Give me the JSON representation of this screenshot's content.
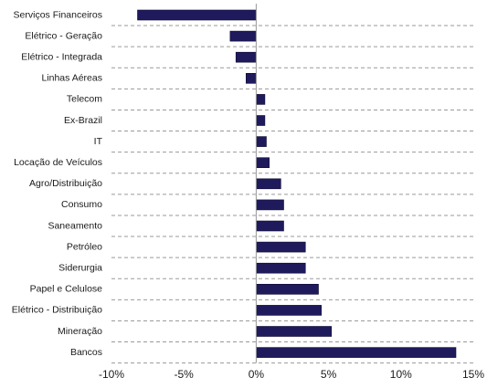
{
  "chart_data": {
    "type": "bar",
    "orientation": "horizontal",
    "categories": [
      "Serviços Financeiros",
      "Elétrico - Geração",
      "Elétrico - Integrada",
      "Linhas Aéreas",
      "Telecom",
      "Ex-Brazil",
      "IT",
      "Locação de Veículos",
      "Agro/Distribuição",
      "Consumo",
      "Saneamento",
      "Petróleo",
      "Siderurgia",
      "Papel e Celulose",
      "Elétrico - Distribuição",
      "Mineração",
      "Bancos"
    ],
    "values": [
      -8.2,
      -1.8,
      -1.4,
      -0.7,
      0.6,
      0.6,
      0.7,
      0.9,
      1.7,
      1.9,
      1.9,
      3.4,
      3.4,
      4.3,
      4.5,
      5.2,
      13.8
    ],
    "value_unit": "%",
    "xlim": [
      -10,
      15
    ],
    "xticks": [
      -10,
      -5,
      0,
      5,
      10,
      15
    ],
    "xtick_labels": [
      "-10%",
      "-5%",
      "0%",
      "5%",
      "10%",
      "15%"
    ],
    "grid": "horizontal dashed",
    "colors": {
      "bar": "#1f1a5c",
      "grid": "#9a9a9a"
    },
    "title": "",
    "xlabel": "",
    "ylabel": ""
  }
}
